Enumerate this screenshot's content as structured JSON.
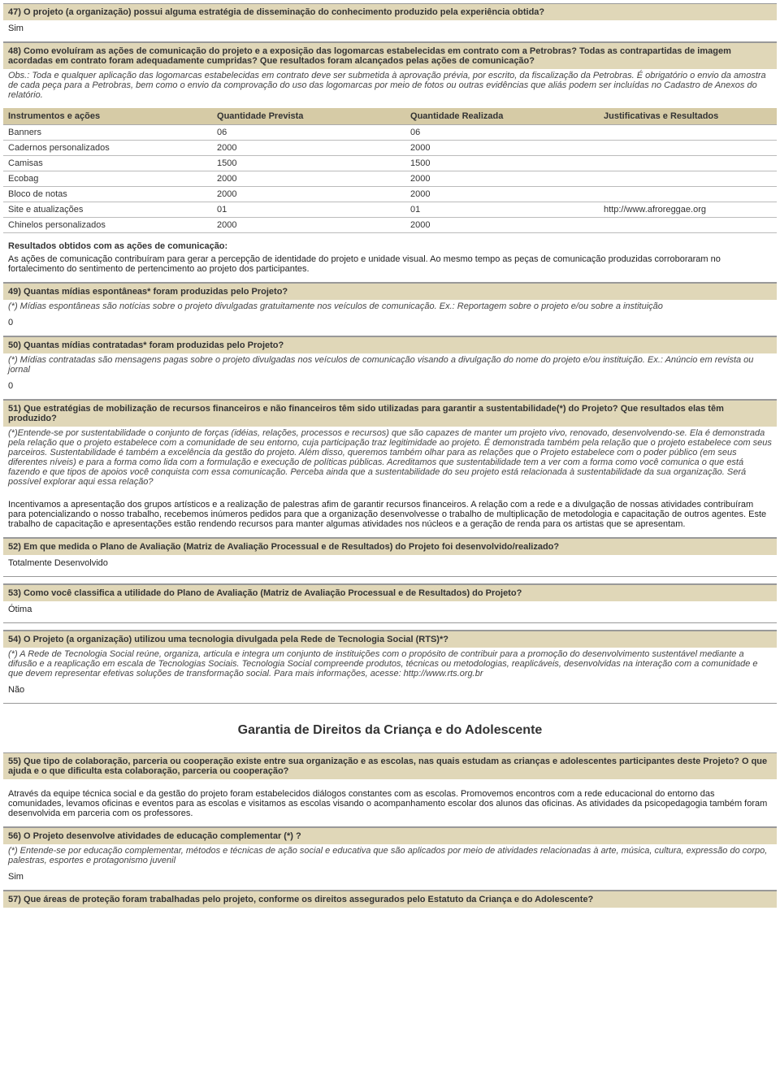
{
  "q47": {
    "title": "47) O projeto (a organização) possui alguma estratégia de disseminação do conhecimento produzido pela experiência obtida?",
    "answer": "Sim"
  },
  "q48": {
    "title": "48) Como evoluíram as ações de comunicação do projeto e a exposição das logomarcas estabelecidas em contrato com a Petrobras? Todas as contrapartidas de imagem acordadas em contrato foram adequadamente cumpridas? Que resultados foram alcançados pelas ações de comunicação?",
    "note": "Obs.: Toda e qualquer aplicação das logomarcas estabelecidas em contrato deve ser submetida à aprovação prévia, por escrito, da fiscalização da Petrobras. É obrigatório o envio da amostra de cada peça para a Petrobras, bem como o envio da comprovação do uso das logomarcas por meio de fotos ou outras evidências que aliás podem ser incluídas no Cadastro de Anexos do relatório.",
    "table": {
      "headers": [
        "Instrumentos e ações",
        "Quantidade Prevista",
        "Quantidade Realizada",
        "Justificativas e Resultados"
      ],
      "rows": [
        [
          "Banners",
          "06",
          "06",
          ""
        ],
        [
          "Cadernos personalizados",
          "2000",
          "2000",
          ""
        ],
        [
          "Camisas",
          "1500",
          "1500",
          ""
        ],
        [
          "Ecobag",
          "2000",
          "2000",
          ""
        ],
        [
          "Bloco de notas",
          "2000",
          "2000",
          ""
        ],
        [
          "Site e atualizações",
          "01",
          "01",
          "http://www.afroreggae.org"
        ],
        [
          "Chinelos personalizados",
          "2000",
          "2000",
          ""
        ]
      ]
    },
    "subhead": "Resultados obtidos com as ações de comunicação:",
    "resultText": "As ações de comunicação contribuíram para gerar a percepção de identidade do projeto e unidade visual. Ao mesmo tempo as peças de comunicação produzidas corroboraram no fortalecimento do sentimento de pertencimento ao projeto dos participantes."
  },
  "q49": {
    "title": "49) Quantas mídias espontâneas* foram produzidas pelo Projeto?",
    "note": "(*) Mídias espontâneas são notícias sobre o projeto divulgadas gratuitamente nos veículos de comunicação. Ex.: Reportagem sobre o projeto e/ou sobre a instituição",
    "answer": "0"
  },
  "q50": {
    "title": "50) Quantas mídias contratadas* foram produzidas pelo Projeto?",
    "note": "(*) Mídias contratadas são mensagens pagas sobre o projeto divulgadas nos veículos de comunicação visando a divulgação do nome do projeto e/ou instituição. Ex.: Anúncio em revista ou jornal",
    "answer": "0"
  },
  "q51": {
    "title": "51) Que estratégias de mobilização de recursos financeiros e não financeiros têm sido utilizadas para garantir a sustentabilidade(*) do Projeto? Que resultados elas têm produzido?",
    "note": "(*)Entende-se por sustentabilidade o conjunto de forças (idéias, relações, processos e recursos) que são capazes de manter um projeto vivo, renovado, desenvolvendo-se. Ela é demonstrada pela relação que o projeto estabelece com a comunidade de seu entorno, cuja participação traz legitimidade ao projeto. É demonstrada também pela relação que o projeto estabelece com seus parceiros. Sustentabilidade é também a excelência da gestão do projeto. Além disso, queremos também olhar para as relações que o Projeto estabelece com o poder público (em seus diferentes níveis) e para a forma como lida com a formulação e execução de políticas públicas. Acreditamos que sustentabilidade tem a ver com a forma como você comunica o que está fazendo e que tipos de apoios você conquista com essa comunicação. Perceba ainda que a sustentabilidade do seu projeto está relacionada à sustentabilidade da sua organização. Será possível explorar aqui essa relação?",
    "answer": "Incentivamos a apresentação dos grupos artísticos e a realização de palestras afim de garantir recursos financeiros. A relação com a rede e a divulgação de nossas atividades contribuíram para potencializando o nosso trabalho, recebemos inúmeros pedidos para que a organização desenvolvesse o trabalho de multiplicação de metodologia e capacitação de outros agentes. Este trabalho de capacitação e apresentações estão rendendo recursos para manter algumas atividades nos núcleos e a geração de renda para os artistas que se apresentam."
  },
  "q52": {
    "title": "52) Em que medida o Plano de Avaliação (Matriz de Avaliação Processual e de Resultados) do Projeto foi desenvolvido/realizado?",
    "answer": "Totalmente Desenvolvido"
  },
  "q53": {
    "title": "53) Como você classifica a utilidade do Plano de Avaliação (Matriz de Avaliação Processual e de Resultados) do Projeto?",
    "answer": "Ótima"
  },
  "q54": {
    "title": "54) O Projeto (a organização) utilizou uma tecnologia divulgada pela Rede de Tecnologia Social (RTS)*?",
    "note": "(*) A Rede de Tecnologia Social reúne, organiza, articula e integra um conjunto de instituições com o propósito de contribuir para a promoção do desenvolvimento sustentável mediante a difusão e a reaplicação em escala de Tecnologias Sociais. Tecnologia Social compreende produtos, técnicas ou metodologias, reaplicáveis, desenvolvidas na interação com a comunidade e que devem representar efetivas soluções de transformação social. Para mais informações, acesse: http://www.rts.org.br",
    "answer": "Não"
  },
  "sectionTitle": "Garantia de Direitos da Criança e do Adolescente",
  "q55": {
    "title": "55) Que tipo de colaboração, parceria ou cooperação existe entre sua organização e as escolas, nas quais estudam as crianças e adolescentes participantes deste Projeto? O que ajuda e o que dificulta esta colaboração, parceria ou cooperação?",
    "answer": "Através da equipe técnica social e da gestão do projeto foram estabelecidos diálogos constantes com as escolas. Promovemos encontros com a rede educacional do entorno das comunidades, levamos oficinas e eventos para as escolas e visitamos as escolas visando o acompanhamento escolar dos alunos das oficinas. As atividades da psicopedagogia também foram desenvolvida em parceria com os professores."
  },
  "q56": {
    "title": "56) O Projeto desenvolve atividades de educação complementar (*) ?",
    "note": "(*) Entende-se por educação complementar, métodos e técnicas de ação social e educativa que são aplicados por meio de atividades relacionadas à arte, música, cultura, expressão do corpo, palestras, esportes e protagonismo juvenil",
    "answer": "Sim"
  },
  "q57": {
    "title": "57) Que áreas de proteção foram trabalhadas pelo projeto, conforme os direitos assegurados pelo Estatuto da Criança e do Adolescente?"
  }
}
